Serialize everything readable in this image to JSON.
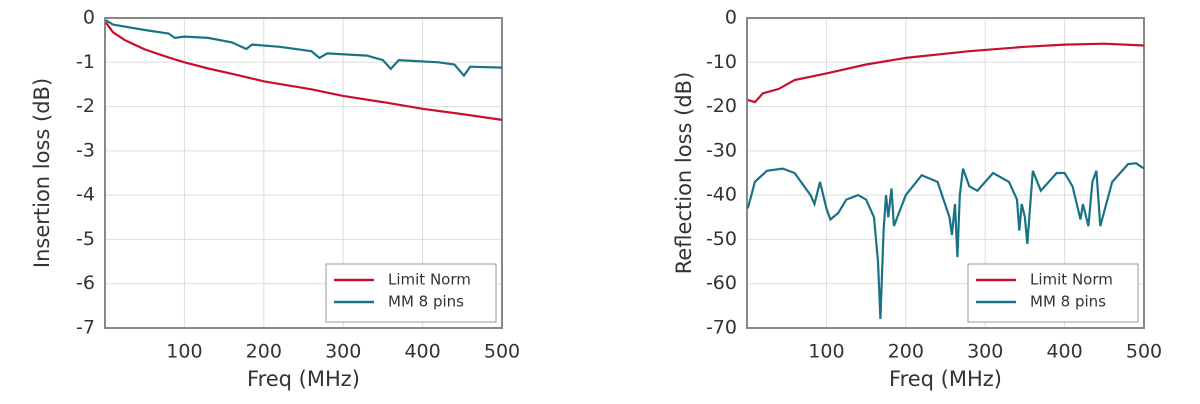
{
  "chart_data": [
    {
      "type": "line",
      "xlabel": "Freq (MHz)",
      "ylabel": "Insertion loss (dB)",
      "xlim": [
        0,
        500
      ],
      "xticks": [
        100,
        200,
        300,
        400,
        500
      ],
      "ylim": [
        -7,
        0
      ],
      "yticks": [
        0,
        -1,
        -2,
        -3,
        -4,
        -5,
        -6,
        -7
      ],
      "grid": true,
      "legend": "lower right",
      "series": [
        {
          "name": "Limit Norm",
          "color": "#c8102e",
          "x": [
            1,
            10,
            25,
            50,
            80,
            100,
            130,
            160,
            200,
            260,
            300,
            350,
            400,
            450,
            500
          ],
          "values": [
            -0.1,
            -0.32,
            -0.5,
            -0.71,
            -0.89,
            -1.0,
            -1.14,
            -1.26,
            -1.43,
            -1.61,
            -1.76,
            -1.9,
            -2.05,
            -2.17,
            -2.3
          ]
        },
        {
          "name": "MM 8 pins",
          "color": "#1a7385",
          "x": [
            1,
            10,
            50,
            80,
            88,
            100,
            130,
            160,
            178,
            185,
            220,
            260,
            270,
            280,
            330,
            350,
            360,
            370,
            420,
            440,
            452,
            460,
            500
          ],
          "values": [
            -0.05,
            -0.15,
            -0.27,
            -0.35,
            -0.45,
            -0.42,
            -0.45,
            -0.55,
            -0.7,
            -0.6,
            -0.65,
            -0.75,
            -0.9,
            -0.8,
            -0.85,
            -0.95,
            -1.15,
            -0.95,
            -1.0,
            -1.05,
            -1.3,
            -1.1,
            -1.12
          ]
        }
      ]
    },
    {
      "type": "line",
      "xlabel": "Freq (MHz)",
      "ylabel": "Reflection loss (dB)",
      "xlim": [
        0,
        500
      ],
      "xticks": [
        100,
        200,
        300,
        400,
        500
      ],
      "ylim": [
        -70,
        0
      ],
      "yticks": [
        0,
        -10,
        -20,
        -30,
        -40,
        -50,
        -60,
        -70
      ],
      "grid": true,
      "legend": "lower right",
      "series": [
        {
          "name": "Limit Norm",
          "color": "#c8102e",
          "x": [
            1,
            10,
            20,
            40,
            60,
            100,
            150,
            200,
            280,
            350,
            400,
            450,
            500
          ],
          "values": [
            -18.5,
            -19,
            -17,
            -16,
            -14,
            -12.5,
            -10.5,
            -9,
            -7.5,
            -6.5,
            -6,
            -5.8,
            -6.2
          ]
        },
        {
          "name": "MM 8 pins",
          "color": "#1a7385",
          "x": [
            1,
            10,
            25,
            45,
            60,
            80,
            85,
            92,
            100,
            105,
            115,
            125,
            140,
            150,
            160,
            165,
            168,
            172,
            175,
            178,
            182,
            185,
            200,
            220,
            240,
            255,
            258,
            262,
            265,
            268,
            272,
            280,
            290,
            310,
            330,
            340,
            343,
            346,
            350,
            353,
            360,
            370,
            390,
            400,
            410,
            420,
            423,
            430,
            435,
            440,
            445,
            460,
            480,
            490,
            500
          ],
          "values": [
            -43,
            -37,
            -34.5,
            -34,
            -35,
            -40,
            -42,
            -37,
            -43,
            -45.5,
            -44,
            -41,
            -40,
            -41,
            -45,
            -55,
            -68,
            -48,
            -40,
            -45,
            -38.5,
            -47,
            -40,
            -35.5,
            -37,
            -45,
            -49,
            -42,
            -54,
            -40,
            -34,
            -38,
            -39,
            -35,
            -37,
            -41,
            -48,
            -42,
            -45,
            -51,
            -34.5,
            -39,
            -35,
            -35,
            -38,
            -45.5,
            -42,
            -47,
            -37,
            -34.5,
            -47,
            -37,
            -33,
            -32.8,
            -34
          ]
        }
      ]
    }
  ]
}
